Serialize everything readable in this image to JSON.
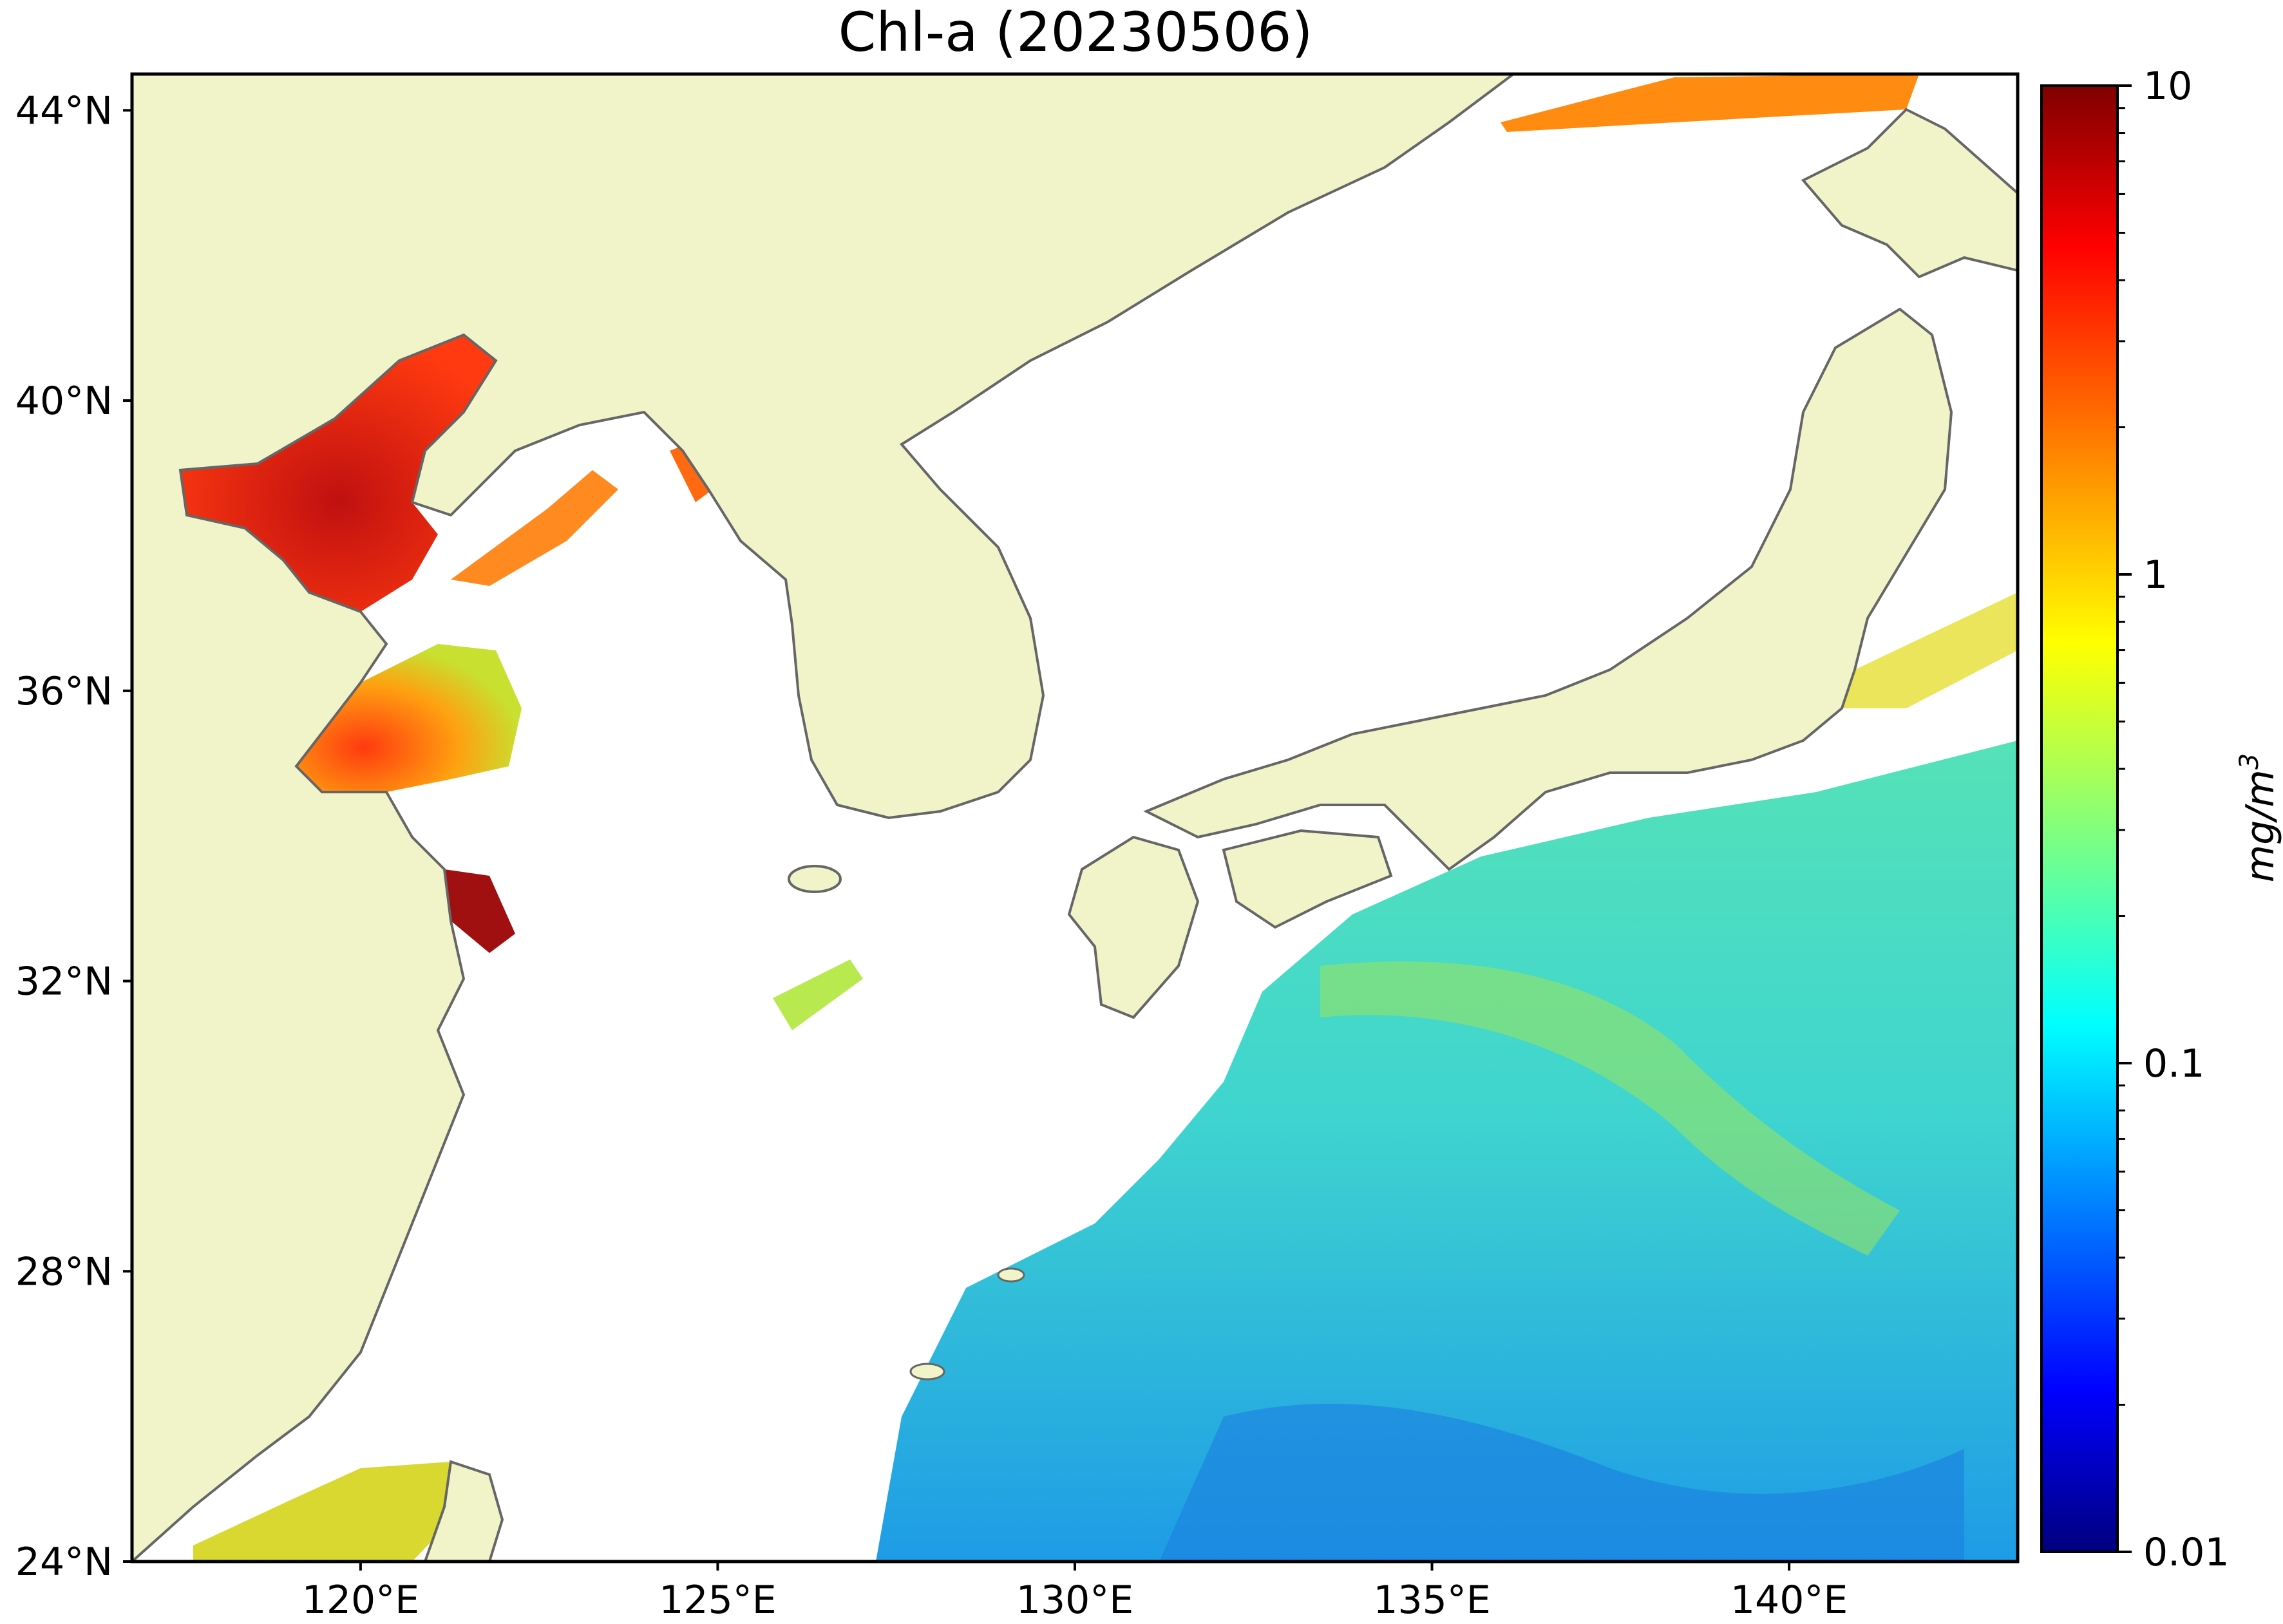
{
  "title": "Chl-a (20230506)",
  "map": {
    "land_color": "#f0f4c8",
    "coast_color": "#666666",
    "ocean_nodata_color": "#ffffff",
    "lon_range": [
      116.8,
      143.2
    ],
    "lat_range": [
      24.0,
      44.5
    ],
    "lat_ticks": [
      {
        "value": 24,
        "label": "24°N"
      },
      {
        "value": 28,
        "label": "28°N"
      },
      {
        "value": 32,
        "label": "32°N"
      },
      {
        "value": 36,
        "label": "36°N"
      },
      {
        "value": 40,
        "label": "40°N"
      },
      {
        "value": 44,
        "label": "44°N"
      }
    ],
    "lon_ticks": [
      {
        "value": 120,
        "label": "120°E"
      },
      {
        "value": 125,
        "label": "125°E"
      },
      {
        "value": 130,
        "label": "130°E"
      },
      {
        "value": 135,
        "label": "135°E"
      },
      {
        "value": 140,
        "label": "140°E"
      }
    ]
  },
  "colorbar": {
    "scale": "log",
    "min": 0.01,
    "max": 10,
    "colormap": "jet",
    "ticks": [
      {
        "value": 10,
        "label": "10"
      },
      {
        "value": 1,
        "label": "1"
      },
      {
        "value": 0.1,
        "label": "0.1"
      },
      {
        "value": 0.01,
        "label": "0.01"
      }
    ],
    "unit_base": "mg/m",
    "unit_exp": "3"
  }
}
